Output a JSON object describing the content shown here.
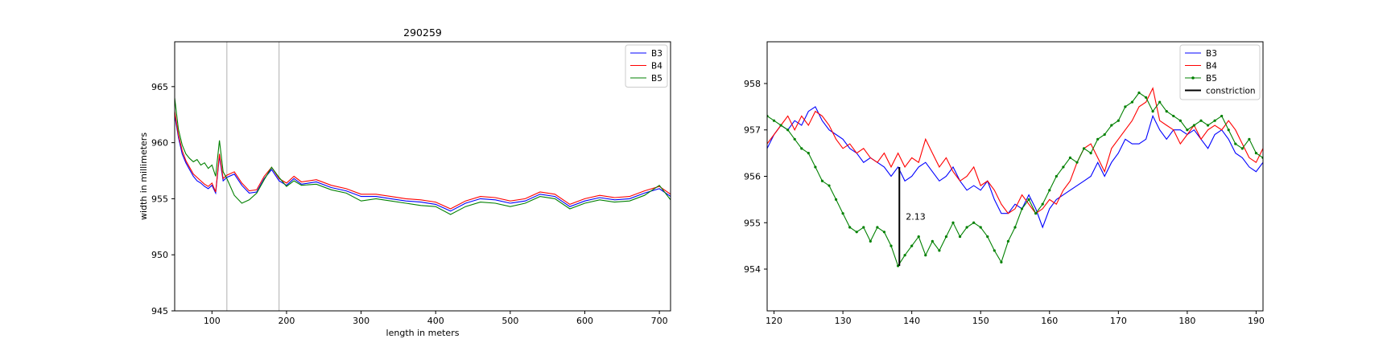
{
  "chart_data": [
    {
      "type": "line",
      "title": "290259",
      "xlabel": "length in meters",
      "ylabel": "width in millimeters",
      "xlim": [
        50,
        715
      ],
      "ylim": [
        945,
        969
      ],
      "xticks": [
        100,
        200,
        300,
        400,
        500,
        600,
        700
      ],
      "yticks": [
        945,
        950,
        955,
        960,
        965
      ],
      "grid": false,
      "legend_position": "top-right",
      "vlines": [
        120,
        190
      ],
      "series": [
        {
          "name": "B3",
          "color": "#0000ff",
          "x": [
            50,
            55,
            60,
            65,
            70,
            75,
            80,
            85,
            90,
            95,
            100,
            105,
            110,
            115,
            120,
            130,
            140,
            150,
            160,
            170,
            180,
            190,
            200,
            210,
            220,
            240,
            260,
            280,
            300,
            320,
            340,
            360,
            380,
            400,
            420,
            440,
            460,
            480,
            500,
            520,
            540,
            560,
            580,
            600,
            620,
            640,
            660,
            680,
            700,
            715
          ],
          "y": [
            962.5,
            960.5,
            959.0,
            958.2,
            957.6,
            957.0,
            956.6,
            956.4,
            956.1,
            955.9,
            956.2,
            955.5,
            958.8,
            956.6,
            956.9,
            957.2,
            956.2,
            955.5,
            955.6,
            956.8,
            957.6,
            956.6,
            956.2,
            956.8,
            956.3,
            956.5,
            956.0,
            955.7,
            955.2,
            955.2,
            955.0,
            954.8,
            954.7,
            954.5,
            953.9,
            954.6,
            955.0,
            954.9,
            954.6,
            954.8,
            955.4,
            955.2,
            954.3,
            954.8,
            955.1,
            954.9,
            955.0,
            955.5,
            955.9,
            955.2
          ]
        },
        {
          "name": "B4",
          "color": "#ff0000",
          "x": [
            50,
            55,
            60,
            65,
            70,
            75,
            80,
            85,
            90,
            95,
            100,
            105,
            110,
            115,
            120,
            130,
            140,
            150,
            160,
            170,
            180,
            190,
            200,
            210,
            220,
            240,
            260,
            280,
            300,
            320,
            340,
            360,
            380,
            400,
            420,
            440,
            460,
            480,
            500,
            520,
            540,
            560,
            580,
            600,
            620,
            640,
            660,
            680,
            700,
            715
          ],
          "y": [
            962.8,
            960.7,
            959.3,
            958.4,
            957.8,
            957.2,
            956.9,
            956.6,
            956.3,
            956.1,
            956.4,
            955.6,
            959.0,
            956.8,
            957.1,
            957.4,
            956.4,
            955.7,
            955.8,
            957.0,
            957.8,
            956.8,
            956.4,
            957.0,
            956.5,
            956.7,
            956.2,
            955.9,
            955.4,
            955.4,
            955.2,
            955.0,
            954.9,
            954.7,
            954.1,
            954.8,
            955.2,
            955.1,
            954.8,
            955.0,
            955.6,
            955.4,
            954.5,
            955.0,
            955.3,
            955.1,
            955.2,
            955.7,
            956.1,
            955.4
          ]
        },
        {
          "name": "B5",
          "color": "#008000",
          "x": [
            50,
            55,
            60,
            65,
            70,
            75,
            80,
            85,
            90,
            95,
            100,
            105,
            110,
            115,
            120,
            130,
            140,
            150,
            160,
            170,
            180,
            190,
            200,
            210,
            220,
            240,
            260,
            280,
            300,
            320,
            340,
            360,
            380,
            400,
            420,
            440,
            460,
            480,
            500,
            520,
            540,
            560,
            580,
            600,
            620,
            640,
            660,
            680,
            700,
            715
          ],
          "y": [
            964.0,
            961.2,
            959.8,
            959.0,
            958.6,
            958.3,
            958.5,
            958.0,
            958.2,
            957.7,
            958.0,
            957.0,
            960.2,
            957.4,
            956.8,
            955.3,
            954.6,
            954.9,
            955.5,
            956.7,
            957.8,
            956.9,
            956.1,
            956.6,
            956.2,
            956.3,
            955.8,
            955.5,
            954.8,
            955.0,
            954.8,
            954.6,
            954.4,
            954.3,
            953.6,
            954.3,
            954.7,
            954.6,
            954.3,
            954.6,
            955.2,
            955.0,
            954.1,
            954.6,
            954.9,
            954.7,
            954.8,
            955.3,
            956.2,
            954.9
          ]
        }
      ]
    },
    {
      "type": "line",
      "title": "",
      "xlabel": "",
      "ylabel": "",
      "xlim": [
        119,
        191
      ],
      "ylim": [
        953.1,
        958.9
      ],
      "xticks": [
        120,
        130,
        140,
        150,
        160,
        170,
        180,
        190
      ],
      "yticks": [
        954,
        955,
        956,
        957,
        958
      ],
      "grid": false,
      "legend_position": "top-right",
      "annotation": {
        "text": "2.13",
        "x": 138.2,
        "y_top": 956.2,
        "y_bottom": 954.07
      },
      "series": [
        {
          "name": "B3",
          "color": "#0000ff",
          "marker": false,
          "x": [
            119,
            120,
            121,
            122,
            123,
            124,
            125,
            126,
            127,
            128,
            129,
            130,
            131,
            132,
            133,
            134,
            135,
            136,
            137,
            138,
            139,
            140,
            141,
            142,
            143,
            144,
            145,
            146,
            147,
            148,
            149,
            150,
            151,
            152,
            153,
            154,
            155,
            156,
            157,
            158,
            159,
            160,
            161,
            162,
            163,
            164,
            165,
            166,
            167,
            168,
            169,
            170,
            171,
            172,
            173,
            174,
            175,
            176,
            177,
            178,
            179,
            180,
            181,
            182,
            183,
            184,
            185,
            186,
            187,
            188,
            189,
            190,
            191
          ],
          "y": [
            956.6,
            956.9,
            957.1,
            957.0,
            957.2,
            957.1,
            957.4,
            957.5,
            957.2,
            957.0,
            956.9,
            956.8,
            956.6,
            956.5,
            956.3,
            956.4,
            956.3,
            956.2,
            956.0,
            956.2,
            955.9,
            956.0,
            956.2,
            956.3,
            956.1,
            955.9,
            956.0,
            956.2,
            955.9,
            955.7,
            955.8,
            955.7,
            955.9,
            955.5,
            955.2,
            955.2,
            955.4,
            955.3,
            955.6,
            955.3,
            954.9,
            955.3,
            955.5,
            955.6,
            955.7,
            955.8,
            955.9,
            956.0,
            956.3,
            956.0,
            956.3,
            956.5,
            956.8,
            956.7,
            956.7,
            956.8,
            957.3,
            957.0,
            956.8,
            957.0,
            957.0,
            956.9,
            957.0,
            956.8,
            956.6,
            956.9,
            957.0,
            956.8,
            956.5,
            956.4,
            956.2,
            956.1,
            956.3
          ]
        },
        {
          "name": "B4",
          "color": "#ff0000",
          "marker": false,
          "x": [
            119,
            120,
            121,
            122,
            123,
            124,
            125,
            126,
            127,
            128,
            129,
            130,
            131,
            132,
            133,
            134,
            135,
            136,
            137,
            138,
            139,
            140,
            141,
            142,
            143,
            144,
            145,
            146,
            147,
            148,
            149,
            150,
            151,
            152,
            153,
            154,
            155,
            156,
            157,
            158,
            159,
            160,
            161,
            162,
            163,
            164,
            165,
            166,
            167,
            168,
            169,
            170,
            171,
            172,
            173,
            174,
            175,
            176,
            177,
            178,
            179,
            180,
            181,
            182,
            183,
            184,
            185,
            186,
            187,
            188,
            189,
            190,
            191
          ],
          "y": [
            956.7,
            956.9,
            957.1,
            957.3,
            957.0,
            957.3,
            957.1,
            957.4,
            957.3,
            957.1,
            956.8,
            956.6,
            956.7,
            956.5,
            956.6,
            956.4,
            956.3,
            956.5,
            956.2,
            956.5,
            956.2,
            956.4,
            956.3,
            956.8,
            956.5,
            956.2,
            956.4,
            956.1,
            955.9,
            956.0,
            956.2,
            955.8,
            955.9,
            955.7,
            955.4,
            955.2,
            955.3,
            955.6,
            955.4,
            955.2,
            955.3,
            955.5,
            955.4,
            955.7,
            955.9,
            956.3,
            956.6,
            956.7,
            956.4,
            956.1,
            956.6,
            956.8,
            957.0,
            957.2,
            957.5,
            957.6,
            957.9,
            957.2,
            957.1,
            957.0,
            956.7,
            956.9,
            957.1,
            956.8,
            957.0,
            957.1,
            957.0,
            957.2,
            957.0,
            956.7,
            956.4,
            956.3,
            956.6
          ]
        },
        {
          "name": "B5",
          "color": "#008000",
          "marker": true,
          "x": [
            119,
            120,
            121,
            122,
            123,
            124,
            125,
            126,
            127,
            128,
            129,
            130,
            131,
            132,
            133,
            134,
            135,
            136,
            137,
            138,
            139,
            140,
            141,
            142,
            143,
            144,
            145,
            146,
            147,
            148,
            149,
            150,
            151,
            152,
            153,
            154,
            155,
            156,
            157,
            158,
            159,
            160,
            161,
            162,
            163,
            164,
            165,
            166,
            167,
            168,
            169,
            170,
            171,
            172,
            173,
            174,
            175,
            176,
            177,
            178,
            179,
            180,
            181,
            182,
            183,
            184,
            185,
            186,
            187,
            188,
            189,
            190,
            191
          ],
          "y": [
            957.3,
            957.2,
            957.1,
            957.0,
            956.8,
            956.6,
            956.5,
            956.2,
            955.9,
            955.8,
            955.5,
            955.2,
            954.9,
            954.8,
            954.9,
            954.6,
            954.9,
            954.8,
            954.5,
            954.07,
            954.3,
            954.5,
            954.7,
            954.3,
            954.6,
            954.4,
            954.7,
            955.0,
            954.7,
            954.9,
            955.0,
            954.9,
            954.7,
            954.4,
            954.15,
            954.6,
            954.9,
            955.3,
            955.5,
            955.2,
            955.4,
            955.7,
            956.0,
            956.2,
            956.4,
            956.3,
            956.6,
            956.5,
            956.8,
            956.9,
            957.1,
            957.2,
            957.5,
            957.6,
            957.8,
            957.7,
            957.4,
            957.6,
            957.4,
            957.3,
            957.2,
            957.0,
            957.1,
            957.2,
            957.1,
            957.2,
            957.3,
            957.0,
            956.7,
            956.6,
            956.8,
            956.5,
            956.4
          ]
        },
        {
          "name": "constriction",
          "color": "#000000",
          "marker": false,
          "x": [],
          "y": []
        }
      ]
    }
  ]
}
